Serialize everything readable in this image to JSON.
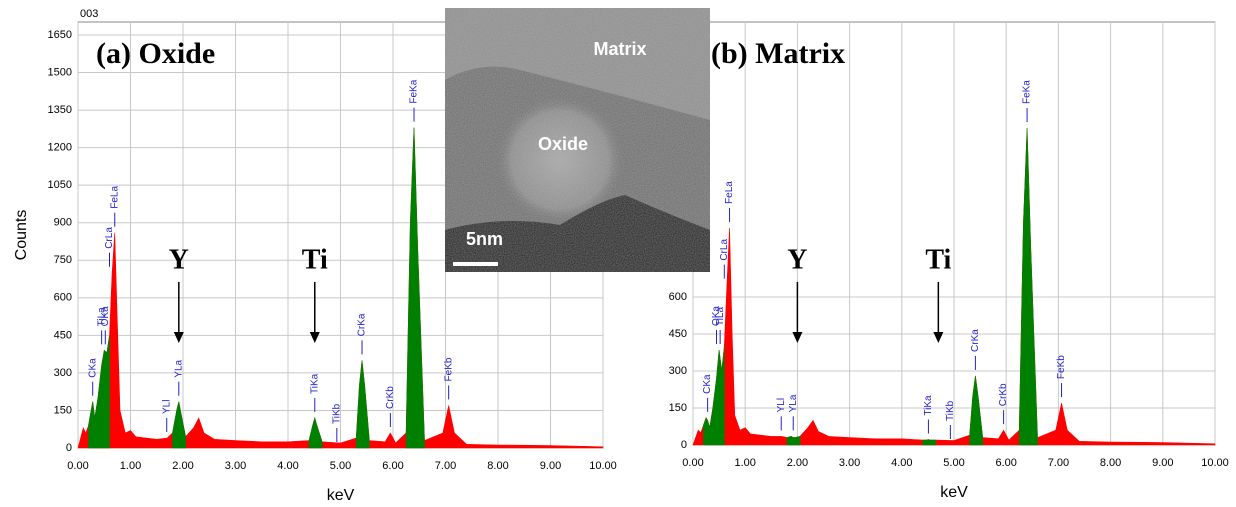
{
  "chart_data": [
    {
      "type": "area",
      "title": "(a) Oxide",
      "panel_id": "003",
      "xlabel": "keV",
      "ylabel": "Counts",
      "xlim": [
        0,
        10
      ],
      "ylim": [
        0,
        1650
      ],
      "xticks": [
        {
          "value": 0,
          "label": "0.00"
        },
        {
          "value": 1,
          "label": "1.00"
        },
        {
          "value": 2,
          "label": "2.00"
        },
        {
          "value": 3,
          "label": "3.00"
        },
        {
          "value": 4,
          "label": "4.00"
        },
        {
          "value": 5,
          "label": "5.00"
        },
        {
          "value": 6,
          "label": "6.00"
        },
        {
          "value": 7,
          "label": "7.00"
        },
        {
          "value": 8,
          "label": "8.00"
        },
        {
          "value": 9,
          "label": "9.00"
        },
        {
          "value": 10,
          "label": "10.00"
        }
      ],
      "yticks": [
        0,
        150,
        300,
        450,
        600,
        750,
        900,
        1050,
        1200,
        1350,
        1500,
        1650
      ],
      "grid": true,
      "x": [
        0,
        0.05,
        0.1,
        0.15,
        0.2,
        0.25,
        0.28,
        0.32,
        0.38,
        0.45,
        0.5,
        0.55,
        0.6,
        0.65,
        0.7,
        0.75,
        0.8,
        0.9,
        1.0,
        1.1,
        1.3,
        1.5,
        1.7,
        1.8,
        1.88,
        1.92,
        1.96,
        2.05,
        2.2,
        2.3,
        2.4,
        2.6,
        3.0,
        3.5,
        4.0,
        4.4,
        4.47,
        4.51,
        4.55,
        4.65,
        5.0,
        5.3,
        5.36,
        5.41,
        5.46,
        5.55,
        5.85,
        5.95,
        6.05,
        6.25,
        6.33,
        6.4,
        6.47,
        6.6,
        6.95,
        7.06,
        7.17,
        7.4,
        8.0,
        9.0,
        10.0
      ],
      "series": [
        {
          "color": "#ff0000",
          "values": [
            0,
            40,
            80,
            60,
            90,
            150,
            185,
            120,
            200,
            330,
            390,
            380,
            450,
            700,
            860,
            500,
            150,
            60,
            70,
            45,
            40,
            35,
            40,
            60,
            150,
            185,
            140,
            45,
            80,
            120,
            60,
            35,
            30,
            25,
            25,
            30,
            90,
            120,
            90,
            25,
            20,
            40,
            250,
            350,
            250,
            30,
            25,
            60,
            20,
            60,
            900,
            1280,
            800,
            30,
            60,
            170,
            60,
            15,
            12,
            10,
            5
          ]
        },
        {
          "color": "#008000",
          "values": [
            null,
            null,
            null,
            null,
            90,
            150,
            185,
            120,
            200,
            330,
            390,
            380,
            450,
            null,
            null,
            null,
            null,
            null,
            null,
            null,
            null,
            null,
            null,
            60,
            150,
            185,
            140,
            45,
            null,
            null,
            null,
            null,
            null,
            null,
            null,
            30,
            90,
            120,
            90,
            25,
            null,
            40,
            250,
            350,
            250,
            30,
            null,
            null,
            null,
            60,
            900,
            1280,
            800,
            30,
            null,
            null,
            null,
            null,
            null,
            null,
            null
          ]
        }
      ],
      "peak_labels": [
        {
          "text": "CKa",
          "x": 0.28
        },
        {
          "text": "TiLa",
          "x": 0.45
        },
        {
          "text": "OKa",
          "x": 0.52
        },
        {
          "text": "CrLa",
          "x": 0.6
        },
        {
          "text": "FeLa",
          "x": 0.7
        },
        {
          "text": "YLl",
          "x": 1.69
        },
        {
          "text": "YLa",
          "x": 1.92
        },
        {
          "text": "TiKa",
          "x": 4.51
        },
        {
          "text": "TiKb",
          "x": 4.93
        },
        {
          "text": "CrKa",
          "x": 5.41
        },
        {
          "text": "CrKb",
          "x": 5.95
        },
        {
          "text": "FeKa",
          "x": 6.4
        },
        {
          "text": "FeKb",
          "x": 7.06
        }
      ],
      "element_markers": [
        {
          "text": "Y",
          "x": 1.92
        },
        {
          "text": "Ti",
          "x": 4.51
        }
      ]
    },
    {
      "type": "area",
      "title": "(b) Matrix",
      "xlabel": "keV",
      "xlim": [
        0,
        10
      ],
      "ylim": [
        0,
        1650
      ],
      "xticks": [
        {
          "value": 0,
          "label": "0.00"
        },
        {
          "value": 1,
          "label": "1.00"
        },
        {
          "value": 2,
          "label": "2.00"
        },
        {
          "value": 3,
          "label": "3.00"
        },
        {
          "value": 4,
          "label": "4.00"
        },
        {
          "value": 5,
          "label": "5.00"
        },
        {
          "value": 6,
          "label": "6.00"
        },
        {
          "value": 7,
          "label": "7.00"
        },
        {
          "value": 8,
          "label": "8.00"
        },
        {
          "value": 9,
          "label": "9.00"
        },
        {
          "value": 10,
          "label": "10.00"
        }
      ],
      "yticks": [
        0,
        150,
        300,
        450,
        600
      ],
      "grid": true,
      "x": [
        0,
        0.05,
        0.1,
        0.15,
        0.2,
        0.25,
        0.28,
        0.32,
        0.38,
        0.45,
        0.5,
        0.55,
        0.6,
        0.65,
        0.7,
        0.75,
        0.8,
        0.9,
        1.0,
        1.1,
        1.3,
        1.5,
        1.7,
        1.8,
        1.88,
        1.92,
        1.96,
        2.05,
        2.2,
        2.3,
        2.4,
        2.6,
        3.0,
        3.5,
        4.0,
        4.4,
        4.47,
        4.51,
        4.55,
        4.65,
        5.0,
        5.3,
        5.36,
        5.41,
        5.46,
        5.55,
        5.85,
        5.95,
        6.05,
        6.25,
        6.33,
        6.4,
        6.47,
        6.6,
        6.95,
        7.06,
        7.17,
        7.4,
        8.0,
        9.0,
        10.0
      ],
      "series": [
        {
          "color": "#ff0000",
          "values": [
            0,
            30,
            60,
            50,
            80,
            110,
            100,
            70,
            150,
            270,
            385,
            300,
            400,
            650,
            880,
            450,
            120,
            60,
            70,
            45,
            40,
            35,
            35,
            30,
            35,
            30,
            30,
            35,
            70,
            100,
            55,
            35,
            30,
            25,
            25,
            20,
            20,
            22,
            20,
            20,
            18,
            40,
            200,
            280,
            200,
            30,
            25,
            60,
            20,
            60,
            900,
            1285,
            800,
            30,
            60,
            170,
            60,
            15,
            12,
            10,
            5
          ]
        },
        {
          "color": "#008000",
          "values": [
            null,
            null,
            null,
            null,
            80,
            110,
            100,
            70,
            150,
            270,
            385,
            300,
            400,
            null,
            null,
            null,
            null,
            null,
            null,
            null,
            null,
            null,
            null,
            30,
            35,
            30,
            30,
            35,
            null,
            null,
            null,
            null,
            null,
            null,
            null,
            20,
            20,
            22,
            20,
            20,
            null,
            40,
            200,
            280,
            200,
            30,
            null,
            null,
            null,
            60,
            900,
            1285,
            800,
            30,
            null,
            null,
            null,
            null,
            null,
            null,
            null
          ]
        }
      ],
      "peak_labels": [
        {
          "text": "CKa",
          "x": 0.28
        },
        {
          "text": "OKa",
          "x": 0.45
        },
        {
          "text": "TiLa",
          "x": 0.52
        },
        {
          "text": "CrLa",
          "x": 0.6
        },
        {
          "text": "FeLa",
          "x": 0.7
        },
        {
          "text": "YLl",
          "x": 1.69
        },
        {
          "text": "YLa",
          "x": 1.92
        },
        {
          "text": "TiKa",
          "x": 4.51
        },
        {
          "text": "TiKb",
          "x": 4.93
        },
        {
          "text": "CrKa",
          "x": 5.41
        },
        {
          "text": "CrKb",
          "x": 5.95
        },
        {
          "text": "FeKa",
          "x": 6.4
        },
        {
          "text": "FeKb",
          "x": 7.06
        }
      ],
      "element_markers": [
        {
          "text": "Y",
          "x": 2.0
        },
        {
          "text": "Ti",
          "x": 4.7
        }
      ]
    }
  ],
  "inset": {
    "labels": [
      "Matrix",
      "Oxide"
    ],
    "scale_bar": "5nm"
  }
}
